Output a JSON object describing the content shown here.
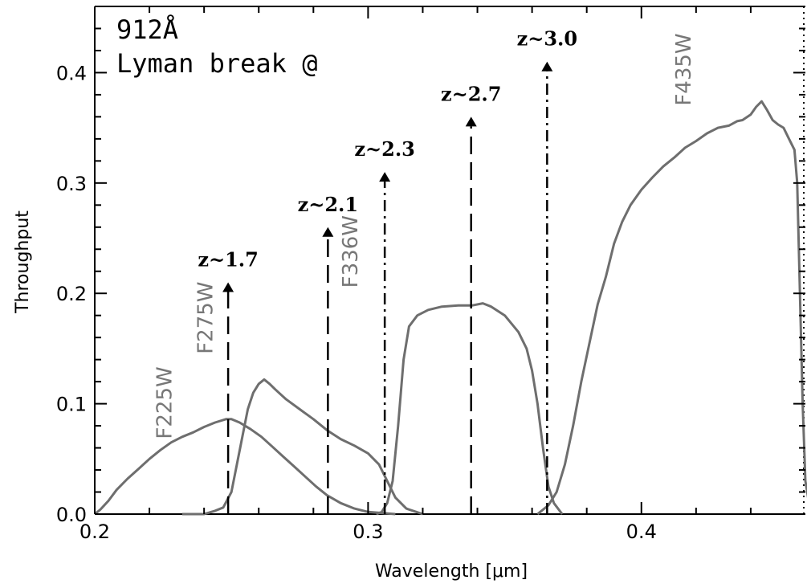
{
  "chart_data": {
    "type": "line",
    "xlabel": "Wavelength [μm]",
    "ylabel": "Throughput",
    "xlim": [
      0.2,
      0.46
    ],
    "ylim": [
      0.0,
      0.46
    ],
    "x_ticks": [
      {
        "value": 0.2,
        "label": "0.2"
      },
      {
        "value": 0.3,
        "label": "0.3"
      },
      {
        "value": 0.4,
        "label": "0.4"
      }
    ],
    "y_ticks": [
      {
        "value": 0.0,
        "label": "0.0"
      },
      {
        "value": 0.1,
        "label": "0.1"
      },
      {
        "value": 0.2,
        "label": "0.2"
      },
      {
        "value": 0.3,
        "label": "0.3"
      },
      {
        "value": 0.4,
        "label": "0.4"
      }
    ],
    "annotation_lines": [
      "912Å",
      "Lyman break @"
    ],
    "series": [
      {
        "name": "F225W",
        "color": "#6e6e6e",
        "label_anchor": [
          0.228,
          0.068
        ],
        "points": [
          [
            0.2,
            0.0
          ],
          [
            0.202,
            0.004
          ],
          [
            0.205,
            0.012
          ],
          [
            0.208,
            0.022
          ],
          [
            0.212,
            0.032
          ],
          [
            0.216,
            0.041
          ],
          [
            0.22,
            0.05
          ],
          [
            0.224,
            0.058
          ],
          [
            0.228,
            0.065
          ],
          [
            0.232,
            0.07
          ],
          [
            0.236,
            0.074
          ],
          [
            0.24,
            0.079
          ],
          [
            0.244,
            0.083
          ],
          [
            0.248,
            0.086
          ],
          [
            0.25,
            0.086
          ],
          [
            0.253,
            0.083
          ],
          [
            0.257,
            0.077
          ],
          [
            0.261,
            0.07
          ],
          [
            0.265,
            0.061
          ],
          [
            0.269,
            0.052
          ],
          [
            0.273,
            0.043
          ],
          [
            0.277,
            0.034
          ],
          [
            0.281,
            0.025
          ],
          [
            0.285,
            0.017
          ],
          [
            0.29,
            0.01
          ],
          [
            0.295,
            0.005
          ],
          [
            0.3,
            0.002
          ],
          [
            0.305,
            0.001
          ],
          [
            0.31,
            0.0
          ]
        ]
      },
      {
        "name": "F275W",
        "color": "#6e6e6e",
        "label_anchor": [
          0.243,
          0.145
        ],
        "points": [
          [
            0.232,
            0.0
          ],
          [
            0.24,
            0.0
          ],
          [
            0.244,
            0.003
          ],
          [
            0.247,
            0.006
          ],
          [
            0.25,
            0.02
          ],
          [
            0.252,
            0.045
          ],
          [
            0.254,
            0.07
          ],
          [
            0.256,
            0.095
          ],
          [
            0.258,
            0.11
          ],
          [
            0.26,
            0.118
          ],
          [
            0.262,
            0.122
          ],
          [
            0.264,
            0.118
          ],
          [
            0.266,
            0.113
          ],
          [
            0.27,
            0.104
          ],
          [
            0.275,
            0.095
          ],
          [
            0.28,
            0.086
          ],
          [
            0.285,
            0.076
          ],
          [
            0.29,
            0.068
          ],
          [
            0.295,
            0.062
          ],
          [
            0.3,
            0.055
          ],
          [
            0.304,
            0.045
          ],
          [
            0.307,
            0.03
          ],
          [
            0.31,
            0.015
          ],
          [
            0.314,
            0.005
          ],
          [
            0.32,
            0.0
          ]
        ]
      },
      {
        "name": "F336W",
        "color": "#6e6e6e",
        "label_anchor": [
          0.296,
          0.205
        ],
        "points": [
          [
            0.303,
            0.0
          ],
          [
            0.305,
            0.002
          ],
          [
            0.307,
            0.01
          ],
          [
            0.309,
            0.03
          ],
          [
            0.311,
            0.08
          ],
          [
            0.313,
            0.14
          ],
          [
            0.315,
            0.17
          ],
          [
            0.318,
            0.18
          ],
          [
            0.322,
            0.185
          ],
          [
            0.327,
            0.188
          ],
          [
            0.333,
            0.189
          ],
          [
            0.338,
            0.189
          ],
          [
            0.342,
            0.191
          ],
          [
            0.345,
            0.188
          ],
          [
            0.35,
            0.18
          ],
          [
            0.355,
            0.165
          ],
          [
            0.358,
            0.15
          ],
          [
            0.36,
            0.13
          ],
          [
            0.362,
            0.1
          ],
          [
            0.364,
            0.06
          ],
          [
            0.366,
            0.025
          ],
          [
            0.368,
            0.01
          ],
          [
            0.371,
            0.0
          ]
        ]
      },
      {
        "name": "F435W",
        "color": "#6e6e6e",
        "label_anchor": [
          0.418,
          0.37
        ],
        "points": [
          [
            0.362,
            0.0
          ],
          [
            0.366,
            0.008
          ],
          [
            0.369,
            0.02
          ],
          [
            0.372,
            0.045
          ],
          [
            0.375,
            0.08
          ],
          [
            0.378,
            0.12
          ],
          [
            0.381,
            0.155
          ],
          [
            0.384,
            0.19
          ],
          [
            0.387,
            0.215
          ],
          [
            0.39,
            0.245
          ],
          [
            0.393,
            0.265
          ],
          [
            0.396,
            0.28
          ],
          [
            0.4,
            0.294
          ],
          [
            0.404,
            0.305
          ],
          [
            0.408,
            0.315
          ],
          [
            0.412,
            0.323
          ],
          [
            0.416,
            0.332
          ],
          [
            0.42,
            0.338
          ],
          [
            0.424,
            0.345
          ],
          [
            0.428,
            0.35
          ],
          [
            0.432,
            0.352
          ],
          [
            0.435,
            0.356
          ],
          [
            0.437,
            0.357
          ],
          [
            0.44,
            0.362
          ],
          [
            0.442,
            0.369
          ],
          [
            0.444,
            0.374
          ],
          [
            0.446,
            0.366
          ],
          [
            0.448,
            0.357
          ],
          [
            0.45,
            0.353
          ],
          [
            0.452,
            0.35
          ],
          [
            0.454,
            0.34
          ],
          [
            0.456,
            0.33
          ],
          [
            0.457,
            0.3
          ],
          [
            0.458,
            0.2
          ],
          [
            0.459,
            0.1
          ],
          [
            0.46,
            0.03
          ],
          [
            0.462,
            0.0
          ]
        ]
      }
    ],
    "markers": [
      {
        "label": "z~1.7",
        "x": 0.2488,
        "y_top": 0.21,
        "style": "dashed"
      },
      {
        "label": "z~2.1",
        "x": 0.2853,
        "y_top": 0.26,
        "style": "dashed"
      },
      {
        "label": "z~2.3",
        "x": 0.3061,
        "y_top": 0.31,
        "style": "dashdot"
      },
      {
        "label": "z~2.7",
        "x": 0.3377,
        "y_top": 0.36,
        "style": "dashed"
      },
      {
        "label": "z~3.0",
        "x": 0.3655,
        "y_top": 0.41,
        "style": "dashdot"
      }
    ]
  }
}
